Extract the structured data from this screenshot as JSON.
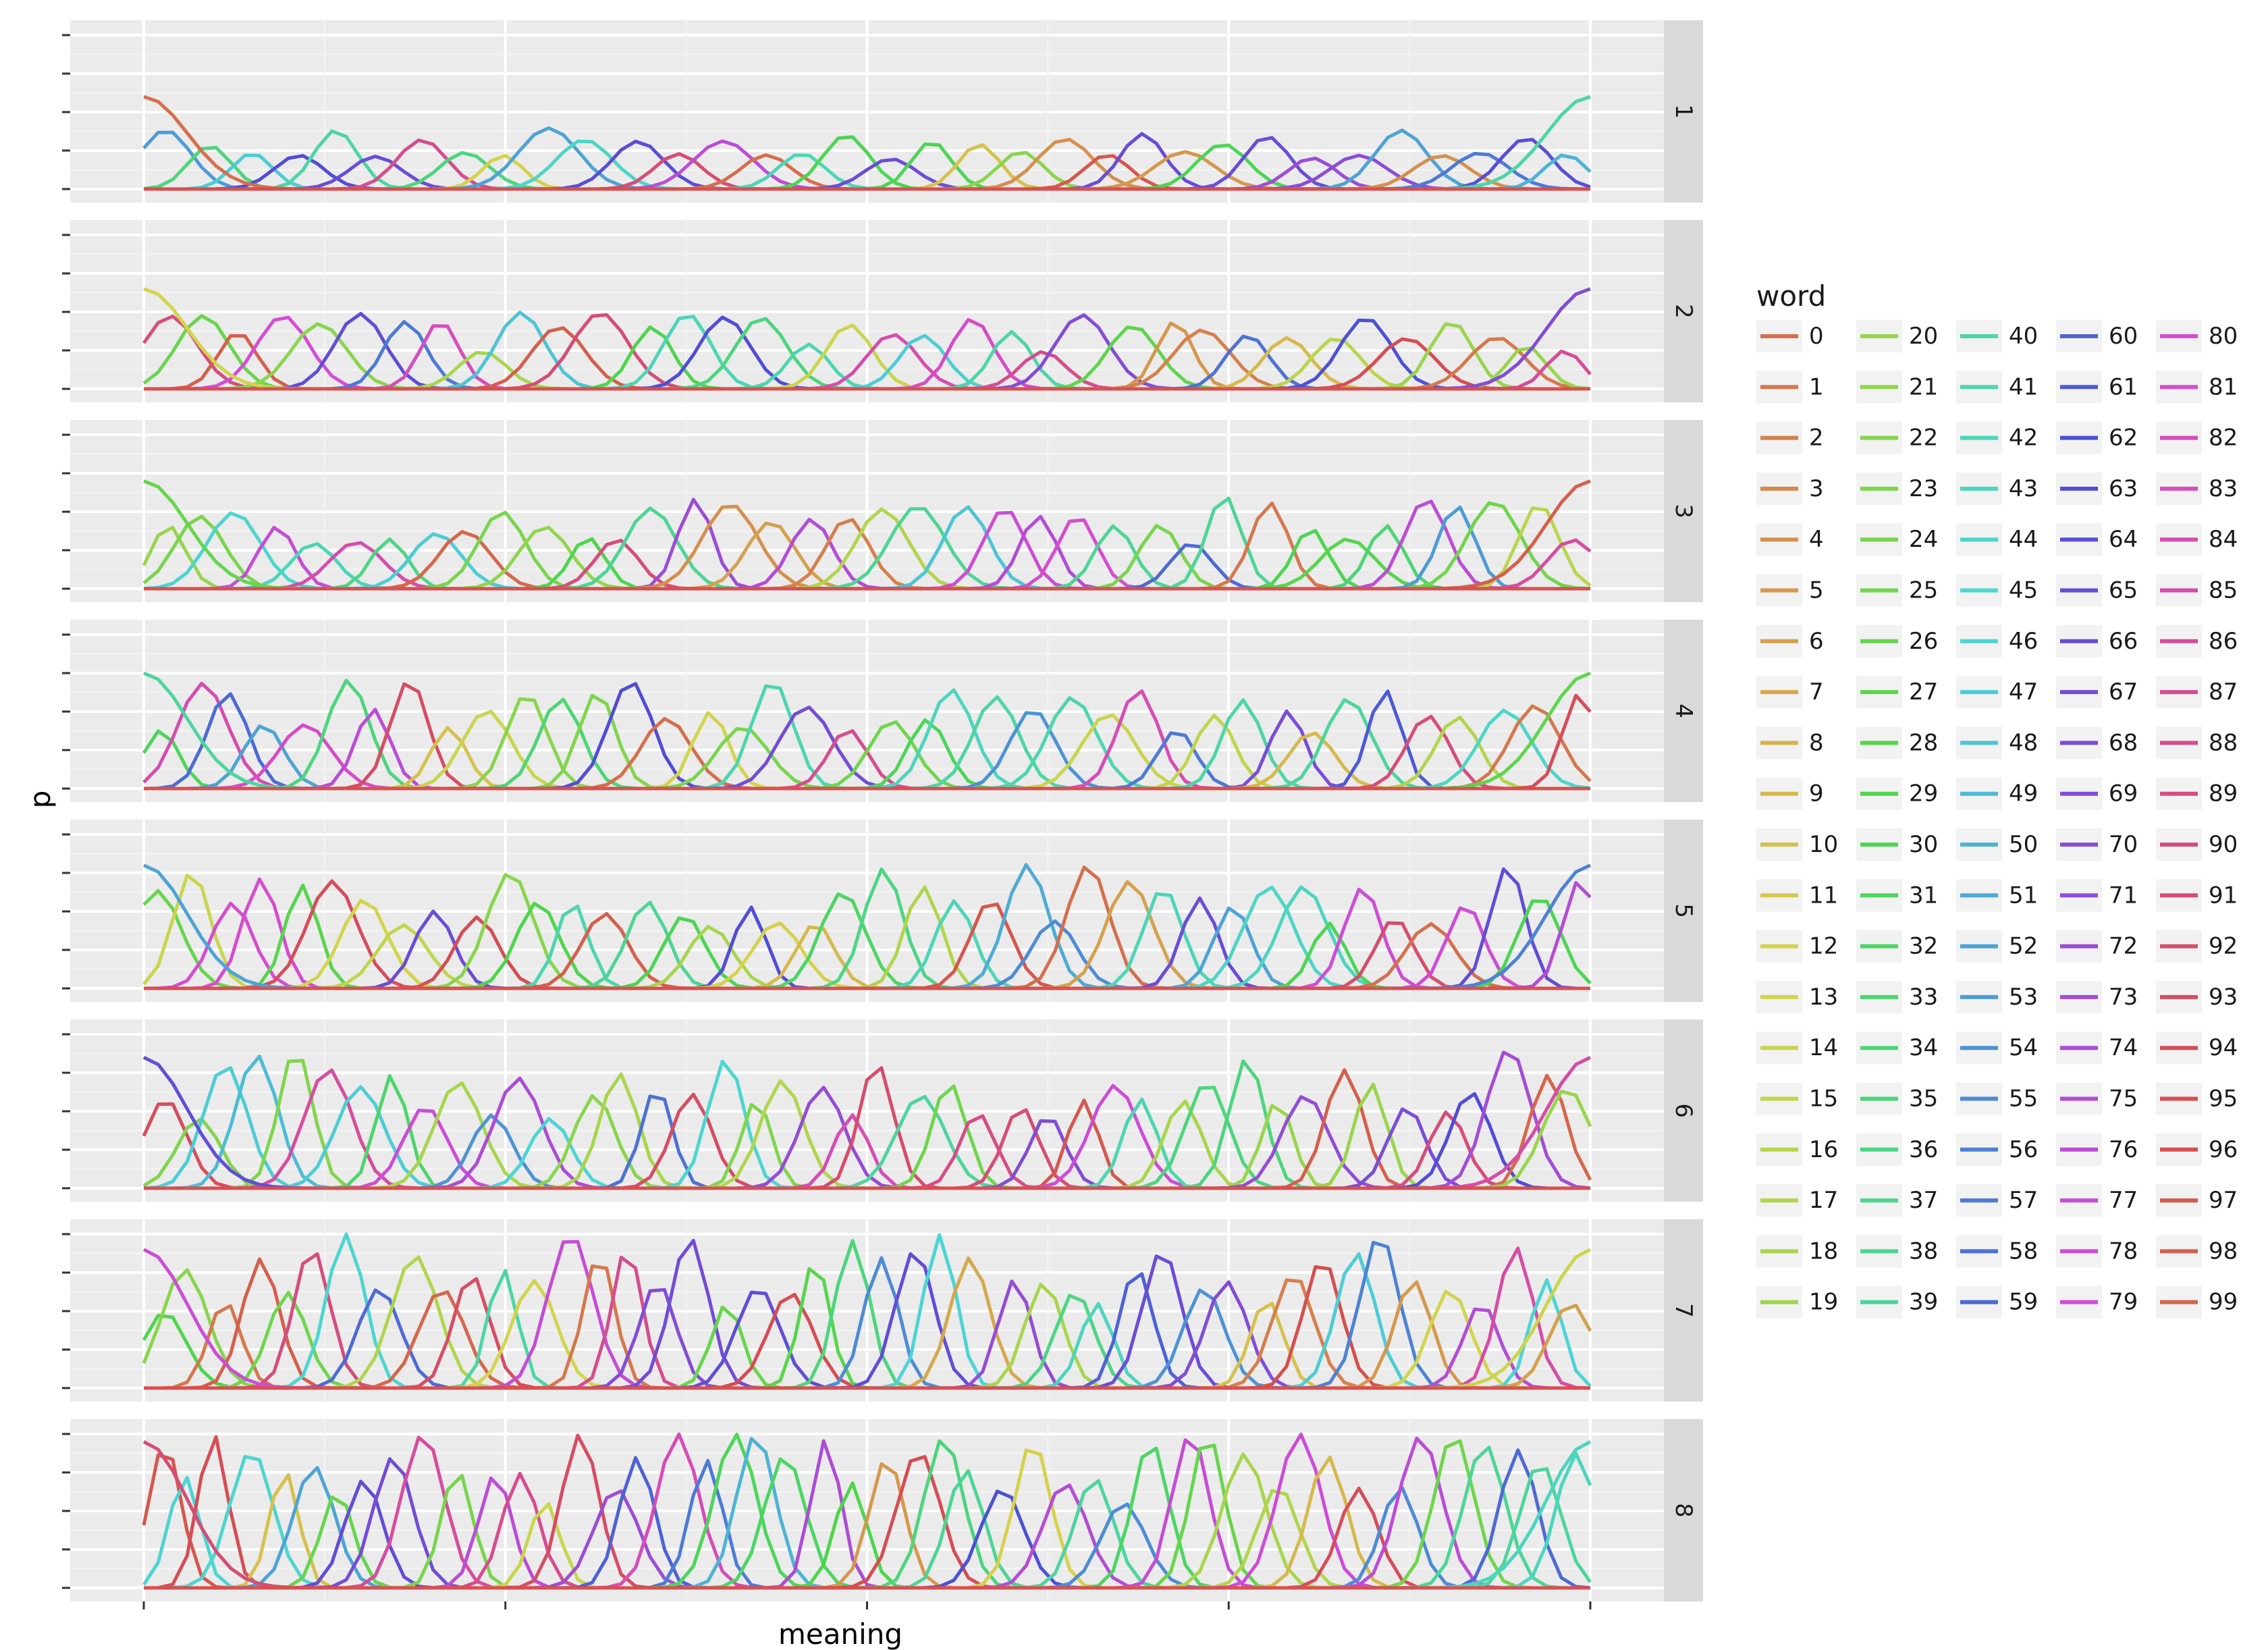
{
  "chart_data": {
    "type": "line",
    "facet_by": "panel",
    "xlabel": "meaning",
    "ylabel": "p",
    "ylim": [
      0,
      1
    ],
    "x_ticks_labeled": false,
    "y_ticks_labeled": false,
    "grid": true,
    "legend": {
      "title": "word",
      "placement": "right",
      "columns": 5,
      "entries_count": 100
    },
    "panels": [
      "1",
      "2",
      "3",
      "4",
      "5",
      "6",
      "7",
      "8"
    ]
  }
}
